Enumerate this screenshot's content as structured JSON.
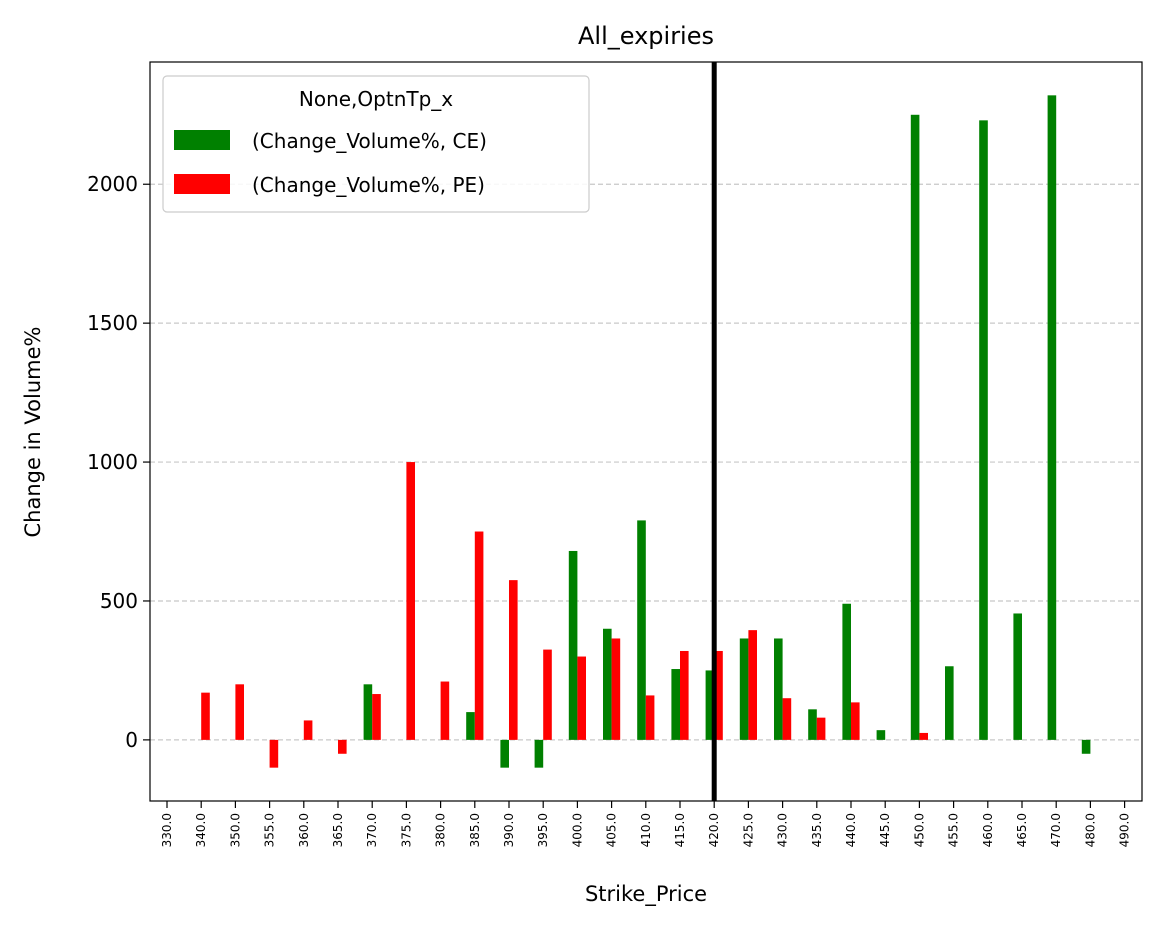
{
  "chart_data": {
    "type": "bar",
    "title": "All_expiries",
    "xlabel": "Strike_Price",
    "ylabel": "Change in Volume%",
    "categories": [
      "330.0",
      "340.0",
      "350.0",
      "355.0",
      "360.0",
      "365.0",
      "370.0",
      "375.0",
      "380.0",
      "385.0",
      "390.0",
      "395.0",
      "400.0",
      "405.0",
      "410.0",
      "415.0",
      "420.0",
      "425.0",
      "430.0",
      "435.0",
      "440.0",
      "445.0",
      "450.0",
      "455.0",
      "460.0",
      "465.0",
      "470.0",
      "480.0",
      "490.0"
    ],
    "series": [
      {
        "name": "(Change_Volume%, CE)",
        "color": "#008000",
        "values": [
          0,
          0,
          0,
          0,
          0,
          0,
          200,
          0,
          0,
          100,
          -100,
          -100,
          680,
          400,
          790,
          255,
          250,
          365,
          365,
          110,
          490,
          35,
          2250,
          265,
          2230,
          455,
          2320,
          -50,
          0
        ]
      },
      {
        "name": "(Change_Volume%, PE)",
        "color": "#ff0000",
        "values": [
          0,
          170,
          200,
          -100,
          70,
          -50,
          165,
          1000,
          210,
          750,
          575,
          325,
          300,
          365,
          160,
          320,
          320,
          395,
          150,
          80,
          135,
          0,
          25,
          0,
          0,
          0,
          0,
          0,
          0
        ]
      }
    ],
    "ylim": [
      -220,
      2440
    ],
    "yticks": [
      0,
      500,
      1000,
      1500,
      2000
    ],
    "grid": "y-dashed",
    "legend": {
      "title": "None,OptnTp_x",
      "placement": "top-left"
    },
    "vline_at_category": "420.0"
  }
}
